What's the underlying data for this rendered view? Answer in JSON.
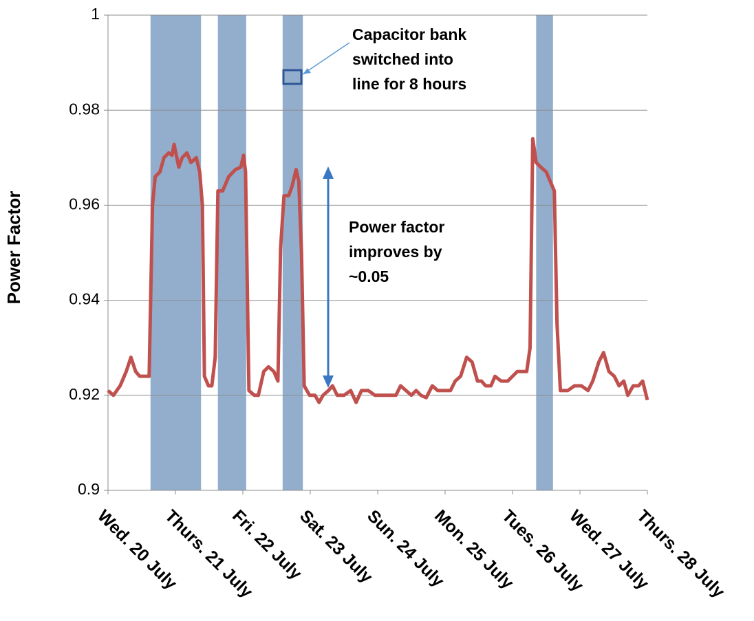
{
  "chart_data": {
    "type": "line",
    "y_label": "Power Factor",
    "xlim": [
      0,
      8
    ],
    "xticks": [
      {
        "value": 0,
        "label": "Wed. 20 July"
      },
      {
        "value": 1,
        "label": "Thurs. 21 July"
      },
      {
        "value": 2,
        "label": "Fri. 22 July"
      },
      {
        "value": 3,
        "label": "Sat. 23 July"
      },
      {
        "value": 4,
        "label": "Sun. 24 July"
      },
      {
        "value": 5,
        "label": "Mon. 25 July"
      },
      {
        "value": 6,
        "label": "Tues. 26 July"
      },
      {
        "value": 7,
        "label": "Wed. 27 July"
      },
      {
        "value": 8,
        "label": "Thurs. 28 July"
      }
    ],
    "ylim": [
      0.9,
      1
    ],
    "yticks": [
      0.9,
      0.92,
      0.94,
      0.96,
      0.98,
      1
    ],
    "grid": true,
    "shaded_spans": [
      [
        0.63,
        1.38
      ],
      [
        1.63,
        2.05
      ],
      [
        2.59,
        2.89
      ],
      [
        6.35,
        6.6
      ]
    ],
    "shade_color": "#93aecd",
    "annotations": [
      {
        "lines": [
          "Capacitor bank",
          "switched into",
          "line for 8 hours"
        ]
      },
      {
        "lines": [
          "Power factor",
          "improves by",
          "~0.05"
        ]
      }
    ],
    "series": [
      {
        "color": "#c0504d",
        "x": [
          0.0,
          0.08,
          0.18,
          0.27,
          0.34,
          0.41,
          0.47,
          0.54,
          0.61,
          0.66,
          0.7,
          0.77,
          0.83,
          0.9,
          0.95,
          0.98,
          1.05,
          1.1,
          1.17,
          1.23,
          1.31,
          1.36,
          1.4,
          1.43,
          1.49,
          1.54,
          1.59,
          1.63,
          1.7,
          1.79,
          1.89,
          1.97,
          2.01,
          2.04,
          2.09,
          2.17,
          2.23,
          2.31,
          2.38,
          2.46,
          2.52,
          2.56,
          2.61,
          2.68,
          2.73,
          2.79,
          2.83,
          2.87,
          2.91,
          2.99,
          3.07,
          3.13,
          3.19,
          3.27,
          3.33,
          3.4,
          3.5,
          3.6,
          3.68,
          3.76,
          3.86,
          3.96,
          4.06,
          4.16,
          4.27,
          4.34,
          4.42,
          4.5,
          4.57,
          4.64,
          4.72,
          4.81,
          4.89,
          4.98,
          5.08,
          5.15,
          5.23,
          5.32,
          5.4,
          5.48,
          5.54,
          5.6,
          5.68,
          5.74,
          5.83,
          5.93,
          6.0,
          6.07,
          6.15,
          6.21,
          6.26,
          6.3,
          6.35,
          6.42,
          6.5,
          6.56,
          6.62,
          6.66,
          6.71,
          6.82,
          6.92,
          7.02,
          7.12,
          7.19,
          7.28,
          7.35,
          7.43,
          7.51,
          7.58,
          7.65,
          7.71,
          7.79,
          7.87,
          7.93,
          8.0
        ],
        "values": [
          0.921,
          0.92,
          0.922,
          0.925,
          0.928,
          0.925,
          0.924,
          0.924,
          0.924,
          0.96,
          0.966,
          0.967,
          0.97,
          0.971,
          0.9705,
          0.9728,
          0.968,
          0.97,
          0.971,
          0.969,
          0.97,
          0.967,
          0.96,
          0.924,
          0.922,
          0.922,
          0.928,
          0.963,
          0.963,
          0.966,
          0.9675,
          0.968,
          0.9705,
          0.967,
          0.921,
          0.92,
          0.92,
          0.925,
          0.926,
          0.925,
          0.923,
          0.951,
          0.962,
          0.962,
          0.964,
          0.9675,
          0.965,
          0.95,
          0.922,
          0.92,
          0.92,
          0.9185,
          0.92,
          0.921,
          0.922,
          0.92,
          0.92,
          0.921,
          0.9185,
          0.921,
          0.921,
          0.92,
          0.92,
          0.92,
          0.92,
          0.922,
          0.921,
          0.92,
          0.921,
          0.92,
          0.9195,
          0.922,
          0.921,
          0.921,
          0.921,
          0.923,
          0.924,
          0.928,
          0.927,
          0.923,
          0.923,
          0.922,
          0.922,
          0.924,
          0.923,
          0.923,
          0.924,
          0.925,
          0.925,
          0.925,
          0.93,
          0.974,
          0.969,
          0.968,
          0.967,
          0.965,
          0.963,
          0.935,
          0.921,
          0.921,
          0.922,
          0.922,
          0.921,
          0.923,
          0.927,
          0.929,
          0.925,
          0.924,
          0.922,
          0.923,
          0.92,
          0.922,
          0.922,
          0.923,
          0.919
        ]
      }
    ]
  }
}
